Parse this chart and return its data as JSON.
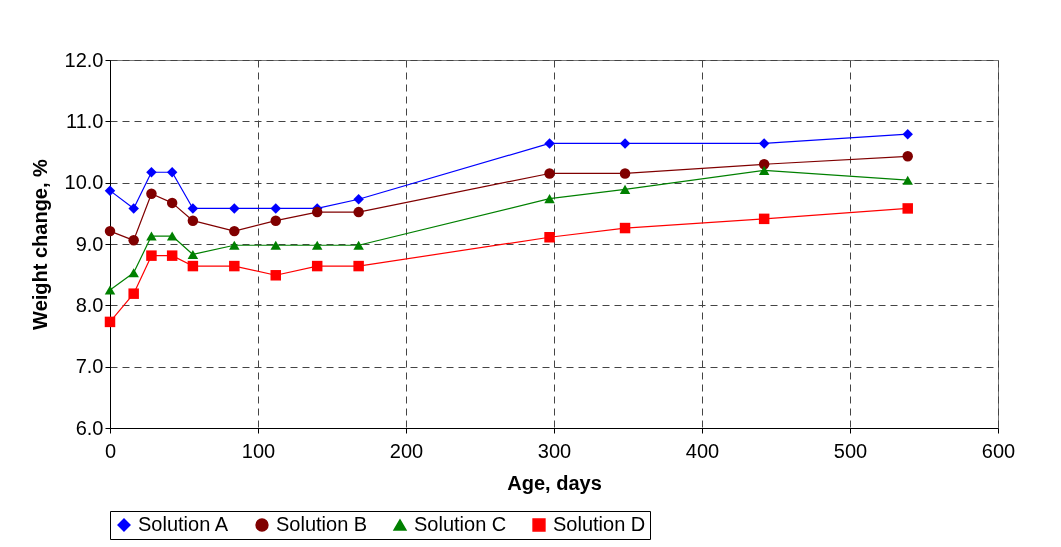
{
  "chart_data": {
    "type": "line",
    "xlabel": "Age, days",
    "ylabel": "Weight change, %",
    "x": [
      0,
      16,
      28,
      42,
      56,
      84,
      112,
      140,
      168,
      297,
      348,
      442,
      539
    ],
    "series": [
      {
        "name": "Solution A",
        "color": "#0000ff",
        "marker": "diamond",
        "values": [
          9.87,
          9.58,
          10.17,
          10.17,
          9.58,
          9.58,
          9.58,
          9.58,
          9.73,
          10.64,
          10.64,
          10.64,
          10.79
        ]
      },
      {
        "name": "Solution B",
        "color": "#800000",
        "marker": "circle",
        "values": [
          9.21,
          9.06,
          9.82,
          9.67,
          9.38,
          9.21,
          9.38,
          9.52,
          9.52,
          10.15,
          10.15,
          10.3,
          10.43
        ]
      },
      {
        "name": "Solution C",
        "color": "#008000",
        "marker": "triangle",
        "values": [
          8.25,
          8.53,
          9.13,
          9.13,
          8.83,
          8.98,
          8.98,
          8.98,
          8.98,
          9.74,
          9.89,
          10.2,
          10.04
        ]
      },
      {
        "name": "Solution D",
        "color": "#ff0000",
        "marker": "square",
        "values": [
          7.73,
          8.19,
          8.81,
          8.81,
          8.64,
          8.64,
          8.49,
          8.64,
          8.64,
          9.11,
          9.26,
          9.41,
          9.58
        ]
      }
    ],
    "xlim": [
      0,
      600
    ],
    "xticks": [
      0,
      100,
      200,
      300,
      400,
      500,
      600
    ],
    "ylim": [
      6,
      12
    ],
    "yticks": [
      {
        "value": 6,
        "label": "6.0"
      },
      {
        "value": 7,
        "label": "7.0"
      },
      {
        "value": 8,
        "label": "8.0"
      },
      {
        "value": 9,
        "label": "9.0"
      },
      {
        "value": 10,
        "label": "10.0"
      },
      {
        "value": 11,
        "label": "11.0"
      },
      {
        "value": 12,
        "label": "12.0"
      }
    ],
    "grid": true,
    "legend": "bottom",
    "line_style": "solid"
  }
}
